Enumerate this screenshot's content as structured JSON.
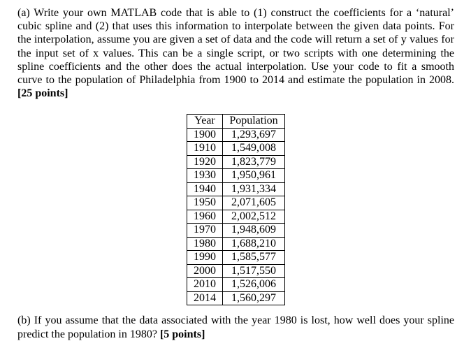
{
  "document": {
    "paragraph_a": {
      "text": "(a) Write your own MATLAB code that is able to (1) construct the coefficients for a ‘natural’ cubic spline and (2) that uses this information to interpolate between the given data points. For the interpolation, assume you are given a set of data and the code will return a set of y values for the input set of x values. This can be a single script, or two scripts with one determining the spline coefficients and the other does the actual interpolation. Use your code to fit a smooth curve to the population of Philadelphia from 1900 to 2014 and estimate the population in 2008.",
      "points": "[25 points]"
    },
    "table": {
      "headers": [
        "Year",
        "Population"
      ],
      "rows": [
        [
          "1900",
          "1,293,697"
        ],
        [
          "1910",
          "1,549,008"
        ],
        [
          "1920",
          "1,823,779"
        ],
        [
          "1930",
          "1,950,961"
        ],
        [
          "1940",
          "1,931,334"
        ],
        [
          "1950",
          "2,071,605"
        ],
        [
          "1960",
          "2,002,512"
        ],
        [
          "1970",
          "1,948,609"
        ],
        [
          "1980",
          "1,688,210"
        ],
        [
          "1990",
          "1,585,577"
        ],
        [
          "2000",
          "1,517,550"
        ],
        [
          "2010",
          "1,526,006"
        ],
        [
          "2014",
          "1,560,297"
        ]
      ]
    },
    "paragraph_b": {
      "text": "(b) If you assume that the data associated with the year 1980 is lost, how well does your spline predict the population in 1980?",
      "points": "[5 points]"
    }
  }
}
